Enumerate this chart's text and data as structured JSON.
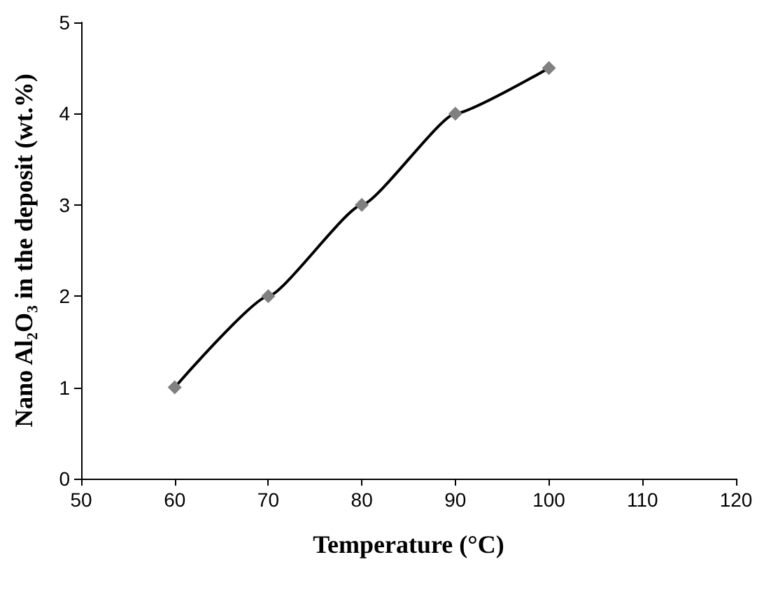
{
  "chart_data": {
    "type": "line",
    "xlabel": "Temperature (°C)",
    "ylabel": "Nano Al₂O₃ in the deposit (wt.%)",
    "x": [
      60,
      70,
      80,
      90,
      100
    ],
    "series": [
      {
        "color": "#000000",
        "colors": [
          "#808080",
          "#808080",
          "#808080",
          "#808080",
          "#808080"
        ],
        "values": [
          1,
          2,
          3,
          4,
          4.5
        ]
      }
    ],
    "xlim": [
      50,
      120
    ],
    "xticks": [
      50,
      60,
      70,
      80,
      90,
      100,
      110,
      120
    ],
    "ylim": [
      0,
      5
    ],
    "yticks": [
      0,
      1,
      2,
      3,
      4,
      5
    ],
    "grid": false,
    "marker": "diamond",
    "line_style": "solid"
  }
}
